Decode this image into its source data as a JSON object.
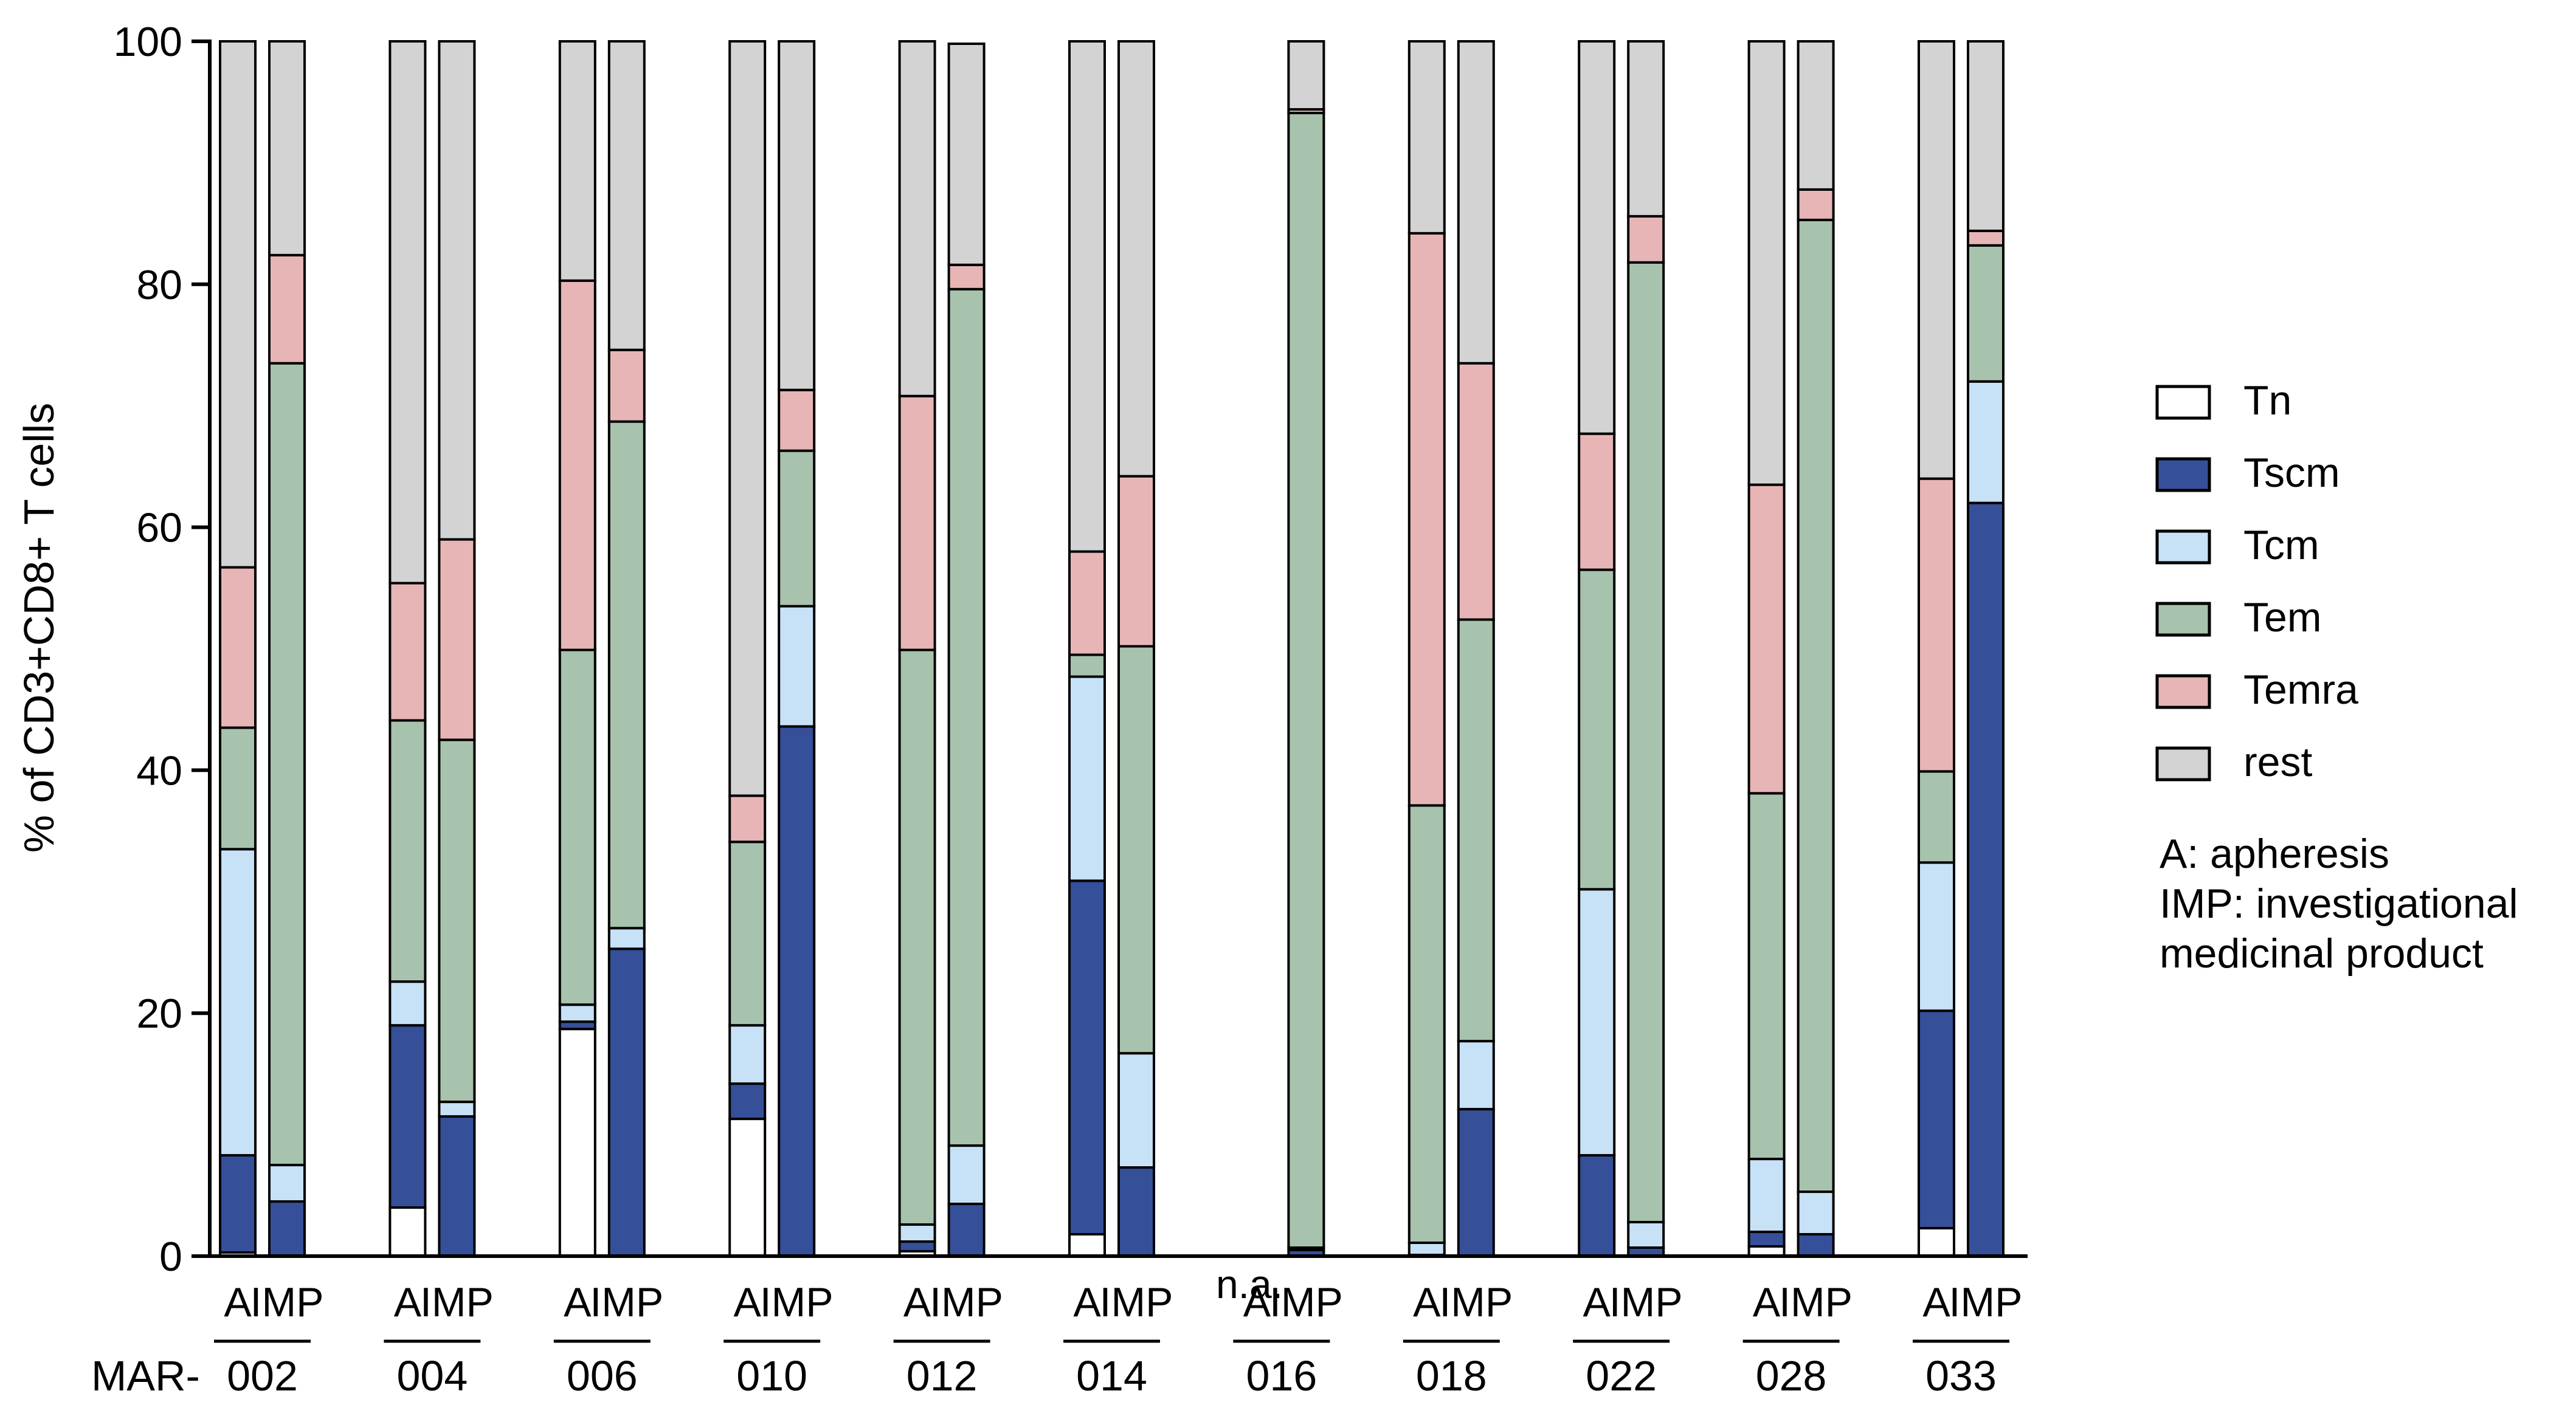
{
  "chart_data": {
    "type": "bar",
    "stacked": true,
    "title": "",
    "xlabel": "",
    "ylabel": "% of CD3+CD8+ T cells",
    "ylim": [
      0,
      100
    ],
    "yticks": [
      0,
      20,
      40,
      60,
      80,
      100
    ],
    "ytick_labels": [
      "0",
      "20",
      "40",
      "60",
      "80",
      "100"
    ],
    "grid": false,
    "legend_position": "right",
    "group_prefix": "MAR-",
    "groups": [
      "002",
      "004",
      "006",
      "010",
      "012",
      "014",
      "016",
      "018",
      "022",
      "028",
      "033"
    ],
    "bar_labels": [
      "A",
      "IMP"
    ],
    "na_label": "n.a.",
    "na_bar": {
      "group": "016",
      "label": "A"
    },
    "series": [
      {
        "name": "Tn",
        "color": "#ffffff",
        "values": [
          0.3,
          0.0,
          4.0,
          0.0,
          18.7,
          0.0,
          11.3,
          0.0,
          0.4,
          0.0,
          1.8,
          0.0,
          null,
          0.0,
          0.0,
          0.0,
          0.0,
          0.0,
          0.8,
          0.0,
          2.3,
          0.0
        ]
      },
      {
        "name": "Tscm",
        "color": "#364f99",
        "values": [
          8.0,
          4.5,
          15.0,
          11.5,
          0.6,
          25.3,
          2.9,
          43.6,
          0.8,
          4.3,
          29.1,
          7.3,
          null,
          0.5,
          0.1,
          12.1,
          8.3,
          0.7,
          1.2,
          1.8,
          17.9,
          62.0
        ]
      },
      {
        "name": "Tcm",
        "color": "#c7e1f7",
        "values": [
          25.2,
          3.0,
          3.6,
          1.2,
          1.4,
          1.7,
          4.8,
          9.9,
          1.4,
          4.8,
          16.8,
          9.4,
          null,
          0.2,
          1.0,
          5.6,
          21.9,
          2.1,
          6.0,
          3.5,
          12.2,
          10.0
        ]
      },
      {
        "name": "Tem",
        "color": "#a7c2ad",
        "values": [
          10.0,
          66.0,
          21.5,
          29.8,
          29.2,
          41.7,
          15.1,
          12.8,
          47.3,
          70.5,
          1.8,
          33.5,
          null,
          93.4,
          36.0,
          34.7,
          26.3,
          79.0,
          30.1,
          80.0,
          7.5,
          11.2
        ]
      },
      {
        "name": "Temra",
        "color": "#e7b5b5",
        "values": [
          13.2,
          8.9,
          11.3,
          16.5,
          30.4,
          5.9,
          3.8,
          5.0,
          20.9,
          2.0,
          8.5,
          14.0,
          null,
          0.3,
          47.1,
          21.1,
          11.2,
          3.8,
          25.4,
          2.5,
          24.1,
          1.2
        ]
      },
      {
        "name": "rest",
        "color": "#d3d3d3",
        "values": [
          43.3,
          17.6,
          44.6,
          41.0,
          19.7,
          25.4,
          62.1,
          28.7,
          29.2,
          18.2,
          42.0,
          35.8,
          null,
          5.6,
          15.8,
          26.5,
          32.3,
          14.4,
          36.5,
          12.2,
          36.0,
          15.6
        ]
      }
    ]
  },
  "legend_note": {
    "line1": "A: apheresis",
    "line2": "IMP: investigational",
    "line3": "medicinal product"
  }
}
